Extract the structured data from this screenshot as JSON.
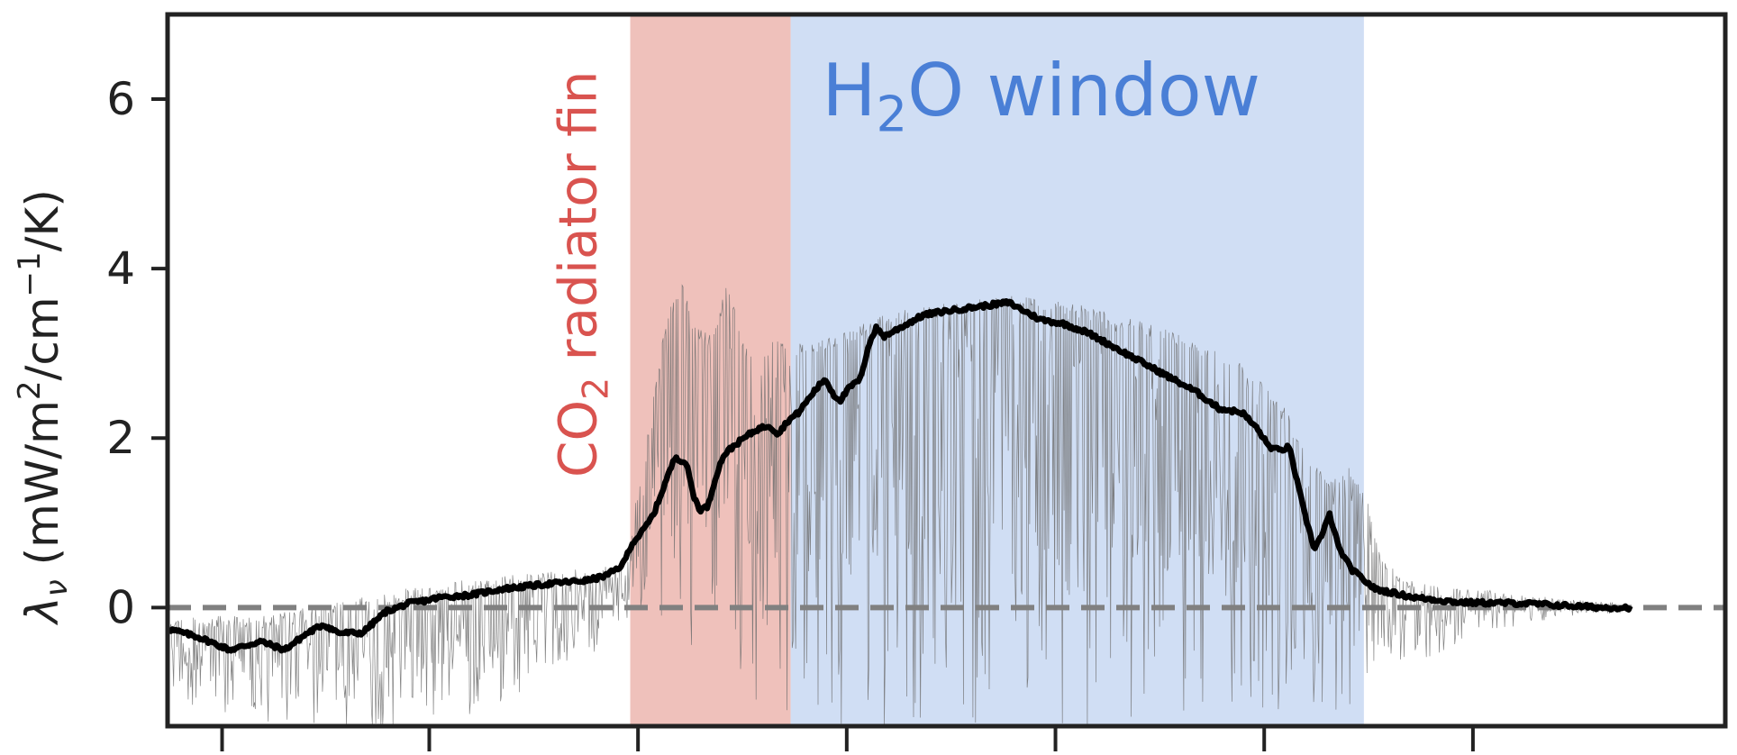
{
  "chart_data": {
    "type": "line",
    "title": "",
    "xlabel": "",
    "ylabel": {
      "symbol": "λ",
      "symbol_sub": "ν",
      "units_open": " (mW/m",
      "units_sup1": "2",
      "units_mid": "/cm",
      "units_sup2": "−1",
      "units_close": "/K)"
    },
    "xlim": [
      0,
      1000
    ],
    "ylim": [
      -1.4,
      7.0
    ],
    "yticks": [
      {
        "value": 0,
        "label": "0"
      },
      {
        "value": 2,
        "label": "2"
      },
      {
        "value": 4,
        "label": "4"
      },
      {
        "value": 6,
        "label": "6"
      }
    ],
    "xticks": [
      35,
      168,
      302,
      436,
      570,
      704,
      838
    ],
    "grid": false,
    "reference_line": {
      "value": 0,
      "style": "dashed",
      "color": "#808080"
    },
    "bands": [
      {
        "name": "co2-band",
        "x0": 297,
        "x1": 400,
        "color": "#e8a69e",
        "label_parts": [
          {
            "t": "CO"
          },
          {
            "t": "2",
            "sub": true
          },
          {
            "t": " radiator fin"
          }
        ],
        "label_color": "#d9534f",
        "label_orientation": "vertical"
      },
      {
        "name": "h2o-band",
        "x0": 400,
        "x1": 768,
        "color": "#bcd0f0",
        "label_parts": [
          {
            "t": "H"
          },
          {
            "t": "2",
            "sub": true
          },
          {
            "t": "O window"
          }
        ],
        "label_color": "#4a7fd6",
        "label_orientation": "horizontal"
      }
    ],
    "series": [
      {
        "role": "smoothed",
        "color": "#000000",
        "x": [
          0,
          20,
          40,
          60,
          75,
          90,
          100,
          110,
          125,
          140,
          155,
          165,
          175,
          195,
          215,
          235,
          255,
          270,
          282,
          292,
          298,
          305,
          312,
          320,
          326,
          333,
          338,
          342,
          347,
          352,
          357,
          363,
          370,
          378,
          386,
          392,
          398,
          405,
          415,
          422,
          428,
          432,
          438,
          445,
          450,
          455,
          460,
          470,
          485,
          500,
          520,
          540,
          560,
          575,
          590,
          605,
          620,
          640,
          660,
          675,
          690,
          700,
          707,
          714,
          720,
          725,
          730,
          736,
          741,
          746,
          752,
          760,
          775,
          800,
          830,
          870,
          900,
          920,
          939
        ],
        "y": [
          -0.25,
          -0.35,
          -0.5,
          -0.4,
          -0.5,
          -0.3,
          -0.2,
          -0.3,
          -0.3,
          -0.05,
          0.05,
          0.08,
          0.12,
          0.15,
          0.22,
          0.26,
          0.3,
          0.32,
          0.38,
          0.5,
          0.75,
          0.9,
          1.1,
          1.5,
          1.78,
          1.7,
          1.3,
          1.15,
          1.2,
          1.55,
          1.8,
          1.9,
          2.0,
          2.1,
          2.15,
          2.05,
          2.2,
          2.3,
          2.55,
          2.7,
          2.5,
          2.45,
          2.6,
          2.7,
          3.1,
          3.3,
          3.2,
          3.3,
          3.45,
          3.5,
          3.55,
          3.6,
          3.4,
          3.35,
          3.25,
          3.1,
          2.95,
          2.75,
          2.55,
          2.35,
          2.3,
          2.1,
          1.9,
          1.85,
          1.9,
          1.5,
          1.1,
          0.7,
          0.85,
          1.1,
          0.7,
          0.45,
          0.22,
          0.12,
          0.06,
          0.05,
          0.02,
          0.0,
          0.0
        ]
      },
      {
        "role": "raw",
        "color": "#6e6e6e",
        "upper_envelope": {
          "x": [
            0,
            60,
            120,
            160,
            200,
            260,
            295,
            300,
            310,
            320,
            330,
            340,
            350,
            360,
            370,
            380,
            390,
            400,
            420,
            440,
            460,
            480,
            500,
            520,
            540,
            560,
            580,
            600,
            620,
            640,
            660,
            680,
            700,
            710,
            720,
            730,
            740,
            750,
            760,
            770,
            780,
            800,
            850,
            900,
            939
          ],
          "y": [
            -0.1,
            -0.1,
            0.1,
            0.25,
            0.35,
            0.45,
            0.5,
            1.2,
            2.3,
            3.4,
            3.9,
            3.3,
            3.2,
            3.9,
            3.1,
            3.0,
            3.2,
            3.1,
            3.15,
            3.3,
            3.45,
            3.55,
            3.6,
            3.65,
            3.7,
            3.65,
            3.6,
            3.5,
            3.4,
            3.3,
            3.15,
            3.0,
            2.75,
            2.55,
            2.3,
            1.9,
            1.65,
            1.55,
            1.7,
            1.3,
            0.55,
            0.3,
            0.2,
            0.1,
            0.05
          ]
        },
        "lower_envelope": {
          "x": [
            0,
            40,
            80,
            120,
            150,
            180,
            230,
            280,
            295,
            300,
            400,
            760,
            770,
            780,
            790,
            800,
            830,
            870,
            900,
            939
          ],
          "y": [
            -1.0,
            -1.4,
            -1.4,
            -1.4,
            -1.4,
            -1.4,
            -1.0,
            -0.5,
            -0.2,
            0.0,
            -1.4,
            -1.4,
            -0.9,
            -0.8,
            -0.6,
            -0.7,
            -0.4,
            -0.2,
            -0.1,
            -0.05
          ]
        }
      }
    ]
  }
}
